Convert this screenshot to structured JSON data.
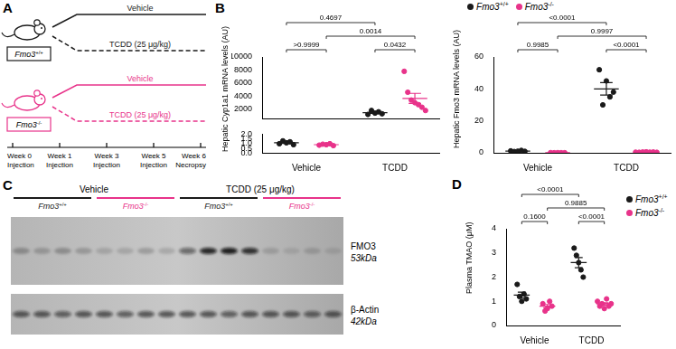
{
  "panels": [
    "A",
    "B",
    "C",
    "D"
  ],
  "diagram": {
    "groups": [
      {
        "label": "Fmo3+/+",
        "color": "#1a1a1a",
        "arms": [
          {
            "label": "Vehicle",
            "line_style": "solid"
          },
          {
            "label": "TCDD (25 μg/kg)",
            "line_style": "dashed"
          }
        ]
      },
      {
        "label": "Fmo3-/-",
        "color": "#e8338a",
        "arms": [
          {
            "label": "Vehicle",
            "line_style": "solid"
          },
          {
            "label": "TCDD (25 μg/kg)",
            "line_style": "dashed"
          }
        ]
      }
    ],
    "timeline": [
      [
        "Week 0",
        "Injection"
      ],
      [
        "Week 1",
        "Injection"
      ],
      [
        "Week 3",
        "Injection"
      ],
      [
        "Week 5",
        "Injection"
      ],
      [
        "Week 6",
        "Necropsy"
      ]
    ]
  },
  "chart_data": [
    {
      "type": "scatter",
      "y_label": "Hepatic Cyp1a1 mRNA levels (AU)",
      "categories": [
        "Vehicle",
        "TCDD"
      ],
      "legend": "top",
      "marker": "circle",
      "grid": false,
      "y_segments": [
        {
          "ylim": [
            500,
            10000
          ],
          "yticks": [
            2000,
            4000,
            6000,
            8000,
            10000
          ]
        },
        {
          "ylim": [
            0,
            2
          ],
          "yticks": [
            {
              "value": 0,
              "label": "0.0"
            },
            {
              "value": 0.5,
              "label": "0.5"
            },
            {
              "value": 1,
              "label": "1.0"
            },
            {
              "value": 1.5,
              "label": "1.5"
            },
            {
              "value": 2,
              "label": "2.0"
            }
          ]
        }
      ],
      "series": [
        {
          "name": "Fmo3+/+",
          "color": "#1a1a1a",
          "values": [
            [
              1.0,
              1.3,
              1.1,
              1.2,
              0.9
            ],
            [
              1200,
              1800,
              1400,
              1600,
              1300
            ]
          ],
          "mean": [
            1.1,
            1460
          ],
          "error": [
            0.07,
            110
          ]
        },
        {
          "name": "Fmo3-/-",
          "color": "#e8338a",
          "values": [
            [
              0.85,
              0.95,
              0.9,
              1.0,
              0.8
            ],
            [
              7800,
              4600,
              3400,
              3000,
              2700,
              2300,
              1800
            ]
          ],
          "mean": [
            0.9,
            3657
          ],
          "error": [
            0.04,
            770
          ]
        }
      ],
      "comparisons": [
        {
          "groups": [
            [
              "Vehicle",
              "Fmo3+/+"
            ],
            [
              "TCDD",
              "Fmo3+/+"
            ]
          ],
          "label": "0.4697"
        },
        {
          "groups": [
            [
              "Vehicle",
              "Fmo3-/-"
            ],
            [
              "TCDD",
              "Fmo3-/-"
            ]
          ],
          "label": "0.0014"
        },
        {
          "groups": [
            [
              "Vehicle",
              "Fmo3+/+"
            ],
            [
              "Vehicle",
              "Fmo3-/-"
            ]
          ],
          "label": ">0.9999"
        },
        {
          "groups": [
            [
              "TCDD",
              "Fmo3+/+"
            ],
            [
              "TCDD",
              "Fmo3-/-"
            ]
          ],
          "label": "0.0432"
        }
      ]
    },
    {
      "type": "scatter",
      "y_label": "Hepatic Fmo3 mRNA levels (AU)",
      "categories": [
        "Vehicle",
        "TCDD"
      ],
      "marker": "circle",
      "grid": false,
      "ylim": [
        0,
        60
      ],
      "yticks": [
        0,
        20,
        40,
        60
      ],
      "series": [
        {
          "name": "Fmo3+/+",
          "color": "#1a1a1a",
          "values": [
            [
              1.2,
              0.8,
              1.0,
              1.5,
              0.9
            ],
            [
              52,
              30,
              45,
              35,
              38
            ]
          ],
          "mean": [
            1.08,
            40
          ],
          "error": [
            0.12,
            3.9
          ]
        },
        {
          "name": "Fmo3-/-",
          "color": "#e8338a",
          "values": [
            [
              0.1,
              0.05,
              0.1,
              0.08,
              0.06
            ],
            [
              0.4,
              0.3,
              0.5,
              0.6,
              0.4,
              0.5,
              0.3
            ]
          ],
          "mean": [
            0.08,
            0.43
          ],
          "error": [
            0.01,
            0.04
          ]
        }
      ],
      "comparisons": [
        {
          "groups": [
            [
              "Vehicle",
              "Fmo3+/+"
            ],
            [
              "TCDD",
              "Fmo3+/+"
            ]
          ],
          "label": "<0.0001"
        },
        {
          "groups": [
            [
              "Vehicle",
              "Fmo3-/-"
            ],
            [
              "TCDD",
              "Fmo3-/-"
            ]
          ],
          "label": "0.9997"
        },
        {
          "groups": [
            [
              "Vehicle",
              "Fmo3+/+"
            ],
            [
              "Vehicle",
              "Fmo3-/-"
            ]
          ],
          "label": "0.9985"
        },
        {
          "groups": [
            [
              "TCDD",
              "Fmo3+/+"
            ],
            [
              "TCDD",
              "Fmo3-/-"
            ]
          ],
          "label": "<0.0001"
        }
      ]
    },
    {
      "type": "scatter",
      "y_label": "Plasma TMAO (μM)",
      "categories": [
        "Vehicle",
        "TCDD"
      ],
      "legend": "right",
      "marker": "circle",
      "grid": false,
      "ylim": [
        0,
        4
      ],
      "yticks": [
        0,
        1,
        2,
        3,
        4
      ],
      "series": [
        {
          "name": "Fmo3+/+",
          "color": "#1a1a1a",
          "values": [
            [
              1.7,
              1.2,
              1.0,
              1.3,
              1.1
            ],
            [
              3.2,
              2.9,
              2.6,
              2.3,
              2.0
            ]
          ],
          "mean": [
            1.26,
            2.6
          ],
          "error": [
            0.12,
            0.21
          ]
        },
        {
          "name": "Fmo3-/-",
          "color": "#e8338a",
          "values": [
            [
              0.9,
              0.6,
              0.7,
              1.0,
              0.8
            ],
            [
              1.0,
              0.8,
              0.9,
              0.7,
              1.1,
              0.8,
              0.9
            ]
          ],
          "mean": [
            0.8,
            0.89
          ],
          "error": [
            0.07,
            0.05
          ]
        }
      ],
      "comparisons": [
        {
          "groups": [
            [
              "Vehicle",
              "Fmo3+/+"
            ],
            [
              "TCDD",
              "Fmo3+/+"
            ]
          ],
          "label": "<0.0001"
        },
        {
          "groups": [
            [
              "Vehicle",
              "Fmo3-/-"
            ],
            [
              "TCDD",
              "Fmo3-/-"
            ]
          ],
          "label": "0.9885"
        },
        {
          "groups": [
            [
              "Vehicle",
              "Fmo3+/+"
            ],
            [
              "Vehicle",
              "Fmo3-/-"
            ]
          ],
          "label": "0.1600"
        },
        {
          "groups": [
            [
              "TCDD",
              "Fmo3+/+"
            ],
            [
              "TCDD",
              "Fmo3-/-"
            ]
          ],
          "label": "<0.0001"
        }
      ]
    }
  ],
  "blot": {
    "conditions": [
      {
        "label": "Vehicle",
        "groups": [
          {
            "label": "Fmo3+/+",
            "color": "#1a1a1a"
          },
          {
            "label": "Fmo3-/-",
            "color": "#e8338a"
          }
        ]
      },
      {
        "label": "TCDD (25 μg/kg)",
        "groups": [
          {
            "label": "Fmo3+/+",
            "color": "#1a1a1a"
          },
          {
            "label": "Fmo3-/-",
            "color": "#e8338a"
          }
        ]
      }
    ],
    "bands": [
      {
        "label": "FMO3",
        "size": "53kDa",
        "intensity": [
          0.25,
          0.2,
          0.25,
          0.2,
          0.15,
          0.15,
          0.2,
          0.15,
          0.5,
          0.85,
          0.9,
          0.8,
          0.15,
          0.1,
          0.15,
          0.1
        ]
      },
      {
        "label": "β-Actin",
        "size": "42kDa",
        "intensity": [
          0.6,
          0.6,
          0.55,
          0.6,
          0.6,
          0.55,
          0.6,
          0.6,
          0.6,
          0.6,
          0.55,
          0.6,
          0.6,
          0.6,
          0.55,
          0.6
        ]
      }
    ]
  }
}
